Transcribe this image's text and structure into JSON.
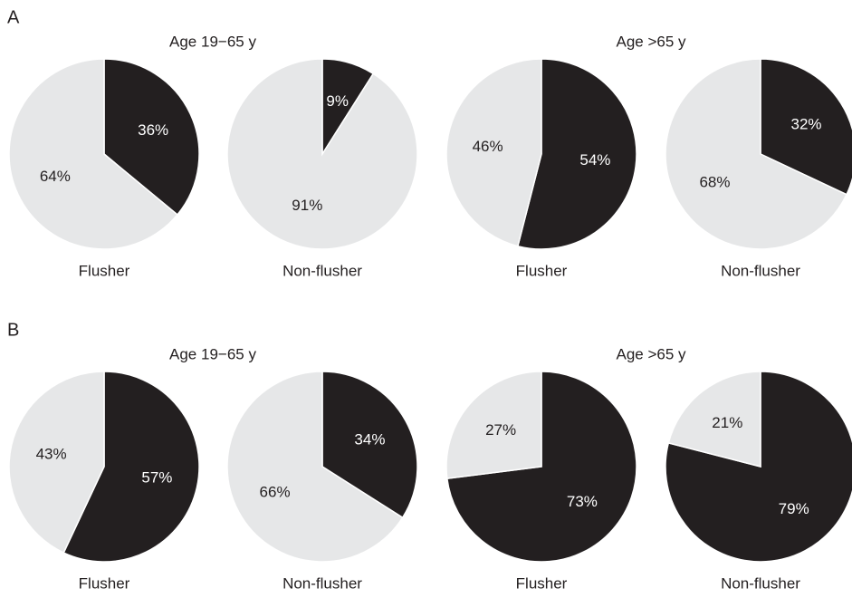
{
  "panels": [
    {
      "label": "A",
      "groups": [
        "Age 19−65 y",
        "Age >65 y"
      ]
    },
    {
      "label": "B",
      "groups": [
        "Age 19−65 y",
        "Age >65 y"
      ]
    }
  ],
  "chart_data": [
    {
      "type": "pie",
      "xlabel": "Flusher",
      "values": [
        36,
        64
      ],
      "value_labels": [
        "36%",
        "64%"
      ],
      "colors": [
        "#231f20",
        "#e6e7e8"
      ]
    },
    {
      "type": "pie",
      "xlabel": "Non-flusher",
      "values": [
        9,
        91
      ],
      "value_labels": [
        "9%",
        "91%"
      ],
      "colors": [
        "#231f20",
        "#e6e7e8"
      ]
    },
    {
      "type": "pie",
      "xlabel": "Flusher",
      "values": [
        54,
        46
      ],
      "value_labels": [
        "54%",
        "46%"
      ],
      "colors": [
        "#231f20",
        "#e6e7e8"
      ]
    },
    {
      "type": "pie",
      "xlabel": "Non-flusher",
      "values": [
        32,
        68
      ],
      "value_labels": [
        "32%",
        "68%"
      ],
      "colors": [
        "#231f20",
        "#e6e7e8"
      ]
    },
    {
      "type": "pie",
      "xlabel": "Flusher",
      "values": [
        57,
        43
      ],
      "value_labels": [
        "57%",
        "43%"
      ],
      "colors": [
        "#231f20",
        "#e6e7e8"
      ]
    },
    {
      "type": "pie",
      "xlabel": "Non-flusher",
      "values": [
        34,
        66
      ],
      "value_labels": [
        "34%",
        "66%"
      ],
      "colors": [
        "#231f20",
        "#e6e7e8"
      ]
    },
    {
      "type": "pie",
      "xlabel": "Flusher",
      "values": [
        73,
        27
      ],
      "value_labels": [
        "73%",
        "27%"
      ],
      "colors": [
        "#231f20",
        "#e6e7e8"
      ]
    },
    {
      "type": "pie",
      "xlabel": "Non-flusher",
      "values": [
        79,
        21
      ],
      "value_labels": [
        "79%",
        "21%"
      ],
      "colors": [
        "#231f20",
        "#e6e7e8"
      ]
    }
  ]
}
